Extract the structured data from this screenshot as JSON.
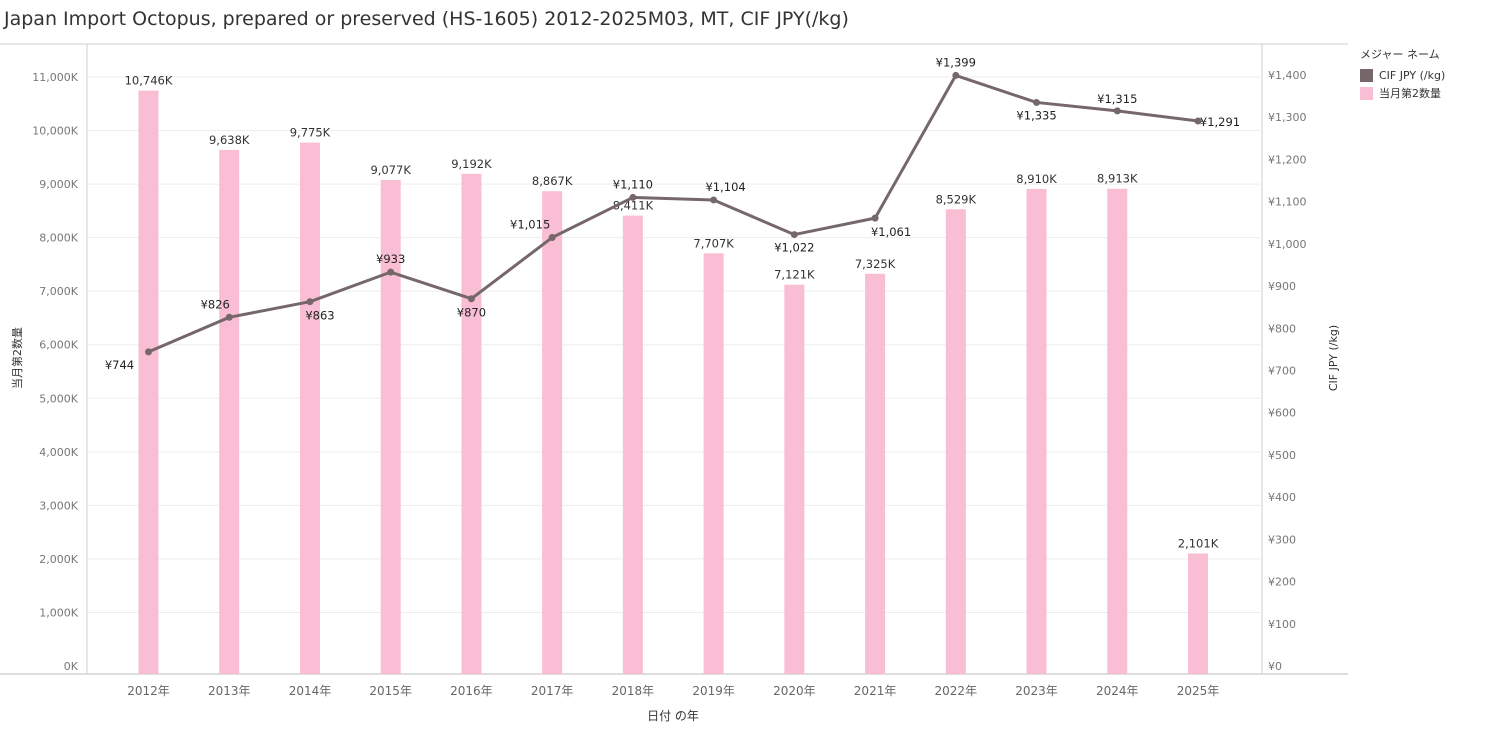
{
  "title": "Japan Import Octopus, prepared or preserved (HS-1605) 2012-2025M03, MT, CIF JPY(/kg)",
  "legend": {
    "title": "メジャー ネーム",
    "items": [
      {
        "label": "CIF JPY (/kg)",
        "color": "#76686a"
      },
      {
        "label": "当月第2数量",
        "color": "#f9bed3"
      }
    ]
  },
  "chart_data": {
    "type": "bar+line",
    "categories": [
      "2012年",
      "2013年",
      "2014年",
      "2015年",
      "2016年",
      "2017年",
      "2018年",
      "2019年",
      "2020年",
      "2021年",
      "2022年",
      "2023年",
      "2024年",
      "2025年"
    ],
    "xlabel": "日付 の年",
    "ylabel_left": "当月第2数量",
    "ylabel_right": "CIF JPY (/kg)",
    "ylim_left": [
      0,
      11500
    ],
    "ylim_right": [
      0,
      1461
    ],
    "yticks_left": [
      0,
      1000,
      2000,
      3000,
      4000,
      5000,
      6000,
      7000,
      8000,
      9000,
      10000,
      11000
    ],
    "yticks_left_labels": [
      "0K",
      "1,000K",
      "2,000K",
      "3,000K",
      "4,000K",
      "5,000K",
      "6,000K",
      "7,000K",
      "8,000K",
      "9,000K",
      "10,000K",
      "11,000K"
    ],
    "yticks_right": [
      0,
      100,
      200,
      300,
      400,
      500,
      600,
      700,
      800,
      900,
      1000,
      1100,
      1200,
      1300,
      1400
    ],
    "yticks_right_labels": [
      "¥0",
      "¥100",
      "¥200",
      "¥300",
      "¥400",
      "¥500",
      "¥600",
      "¥700",
      "¥800",
      "¥900",
      "¥1,000",
      "¥1,100",
      "¥1,200",
      "¥1,300",
      "¥1,400"
    ],
    "bar_color": "#f9bed3",
    "line_color": "#76686a",
    "series": [
      {
        "name": "当月第2数量",
        "type": "bar",
        "axis": "left",
        "values": [
          10746,
          9638,
          9775,
          9077,
          9192,
          8867,
          8411,
          7707,
          7121,
          7325,
          8529,
          8910,
          8913,
          2101
        ],
        "labels": [
          "10,746K",
          "9,638K",
          "9,775K",
          "9,077K",
          "9,192K",
          "8,867K",
          "8,411K",
          "7,707K",
          "7,121K",
          "7,325K",
          "8,529K",
          "8,910K",
          "8,913K",
          "2,101K"
        ]
      },
      {
        "name": "CIF JPY (/kg)",
        "type": "line",
        "axis": "right",
        "values": [
          744,
          826,
          863,
          933,
          870,
          1015,
          1110,
          1104,
          1022,
          1061,
          1399,
          1335,
          1315,
          1291
        ],
        "labels": [
          "¥744",
          "¥826",
          "¥863",
          "¥933",
          "¥870",
          "¥1,015",
          "¥1,110",
          "¥1,104",
          "¥1,022",
          "¥1,061",
          "¥1,399",
          "¥1,335",
          "¥1,315",
          "¥1,291"
        ]
      }
    ]
  }
}
